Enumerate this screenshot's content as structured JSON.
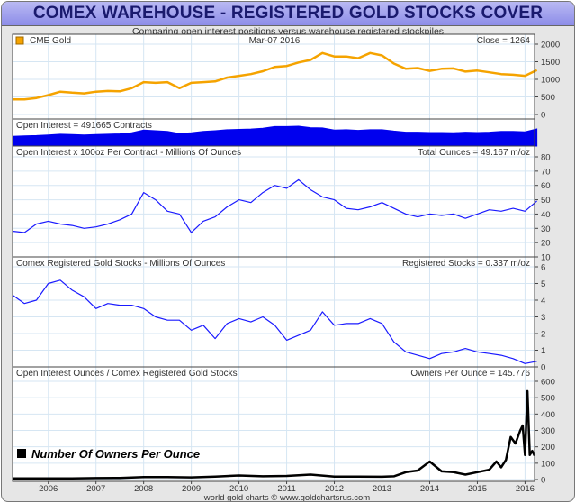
{
  "title": "COMEX WAREHOUSE - REGISTERED GOLD STOCKS COVER",
  "subtitle": "Comparing open interest positions versus warehouse registered stockpiles",
  "footer": "world gold charts © www.goldchartsrus.com",
  "colors": {
    "gold": "#f5a300",
    "oi": "#0000ee",
    "line": "#1a1aff",
    "owners": "#000000",
    "grid": "#d6e6f3"
  },
  "chart_data": {
    "type": "line",
    "x_axis": {
      "ticks": [
        "2006",
        "2007",
        "2008",
        "2009",
        "2010",
        "2011",
        "2012",
        "2013",
        "2014",
        "2015",
        "2016"
      ],
      "range": [
        2005.25,
        2016.2
      ]
    },
    "x_start": 2005.25,
    "x_step": 0.25,
    "panels": [
      {
        "id": "gold",
        "left_label": "CME Gold",
        "center_label": "Mar-07  2016",
        "right_label": "Close = 1264",
        "ylim": [
          0,
          2000
        ],
        "yticks": [
          "0",
          "500",
          "1000",
          "1500",
          "2000"
        ],
        "type": "line",
        "values": [
          430,
          430,
          470,
          550,
          650,
          620,
          600,
          650,
          670,
          660,
          750,
          920,
          900,
          920,
          750,
          900,
          920,
          940,
          1050,
          1100,
          1150,
          1230,
          1350,
          1380,
          1480,
          1550,
          1750,
          1650,
          1650,
          1600,
          1750,
          1680,
          1450,
          1300,
          1320,
          1240,
          1300,
          1310,
          1220,
          1250,
          1200,
          1150,
          1130,
          1100,
          1264
        ]
      },
      {
        "id": "open-interest",
        "left_label": "Open Interest = 491665 Contracts",
        "type": "area",
        "ylim": [
          0,
          700000
        ],
        "values": [
          280000,
          290000,
          300000,
          320000,
          340000,
          330000,
          320000,
          330000,
          340000,
          350000,
          380000,
          460000,
          440000,
          420000,
          360000,
          380000,
          420000,
          440000,
          470000,
          480000,
          490000,
          510000,
          560000,
          560000,
          570000,
          530000,
          520000,
          460000,
          470000,
          450000,
          470000,
          470000,
          430000,
          400000,
          400000,
          390000,
          390000,
          380000,
          400000,
          390000,
          400000,
          420000,
          420000,
          410000,
          491665
        ]
      },
      {
        "id": "total-ounces",
        "left_label": "Open Interest x 100oz Per Contract - Millions Of Ounces",
        "right_label": "Total Ounces = 49.167 m/oz",
        "ylim": [
          10,
          80
        ],
        "yticks": [
          "10",
          "20",
          "30",
          "40",
          "50",
          "60",
          "70",
          "80"
        ],
        "type": "line",
        "values": [
          28,
          27,
          33,
          35,
          33,
          32,
          30,
          31,
          33,
          36,
          40,
          55,
          50,
          42,
          40,
          27,
          35,
          38,
          45,
          50,
          48,
          55,
          60,
          58,
          64,
          57,
          52,
          50,
          44,
          43,
          45,
          48,
          44,
          40,
          38,
          40,
          39,
          40,
          37,
          40,
          43,
          42,
          44,
          42,
          49.167
        ]
      },
      {
        "id": "registered-stocks",
        "left_label": "Comex Registered Gold Stocks - Millions Of Ounces",
        "right_label": "Registered Stocks = 0.337 m/oz",
        "ylim": [
          0,
          6
        ],
        "yticks": [
          "0",
          "1",
          "2",
          "3",
          "4",
          "5",
          "6"
        ],
        "type": "line",
        "values": [
          4.3,
          3.8,
          4.0,
          5.0,
          5.2,
          4.6,
          4.2,
          3.5,
          3.8,
          3.7,
          3.7,
          3.5,
          3.0,
          2.8,
          2.8,
          2.2,
          2.5,
          1.7,
          2.6,
          2.9,
          2.7,
          3.0,
          2.5,
          1.6,
          1.9,
          2.2,
          3.3,
          2.5,
          2.6,
          2.6,
          2.9,
          2.6,
          1.5,
          0.9,
          0.7,
          0.5,
          0.8,
          0.9,
          1.1,
          0.9,
          0.8,
          0.7,
          0.5,
          0.2,
          0.337
        ]
      },
      {
        "id": "owners-per-ounce",
        "left_label": "Open Interest Ounces / Comex Registered Gold Stocks",
        "right_label": "Owners Per Ounce = 145.776",
        "legend": "Number Of Owners Per Ounce",
        "ylim": [
          0,
          600
        ],
        "yticks": [
          "0",
          "100",
          "200",
          "300",
          "400",
          "500",
          "600"
        ],
        "type": "line",
        "points": [
          [
            2005.25,
            7
          ],
          [
            2006,
            7
          ],
          [
            2006.5,
            7
          ],
          [
            2007,
            9
          ],
          [
            2007.5,
            10
          ],
          [
            2008,
            15
          ],
          [
            2008.5,
            15
          ],
          [
            2009,
            13
          ],
          [
            2009.5,
            18
          ],
          [
            2010,
            25
          ],
          [
            2010.5,
            20
          ],
          [
            2011,
            22
          ],
          [
            2011.5,
            30
          ],
          [
            2012,
            18
          ],
          [
            2012.5,
            18
          ],
          [
            2013,
            17
          ],
          [
            2013.25,
            20
          ],
          [
            2013.5,
            45
          ],
          [
            2013.75,
            55
          ],
          [
            2014,
            110
          ],
          [
            2014.25,
            50
          ],
          [
            2014.5,
            45
          ],
          [
            2014.75,
            30
          ],
          [
            2015,
            45
          ],
          [
            2015.25,
            60
          ],
          [
            2015.4,
            110
          ],
          [
            2015.5,
            75
          ],
          [
            2015.6,
            120
          ],
          [
            2015.7,
            260
          ],
          [
            2015.8,
            220
          ],
          [
            2015.9,
            300
          ],
          [
            2015.95,
            330
          ],
          [
            2016.0,
            150
          ],
          [
            2016.05,
            540
          ],
          [
            2016.1,
            150
          ],
          [
            2016.15,
            175
          ],
          [
            2016.2,
            145.776
          ]
        ]
      }
    ]
  }
}
